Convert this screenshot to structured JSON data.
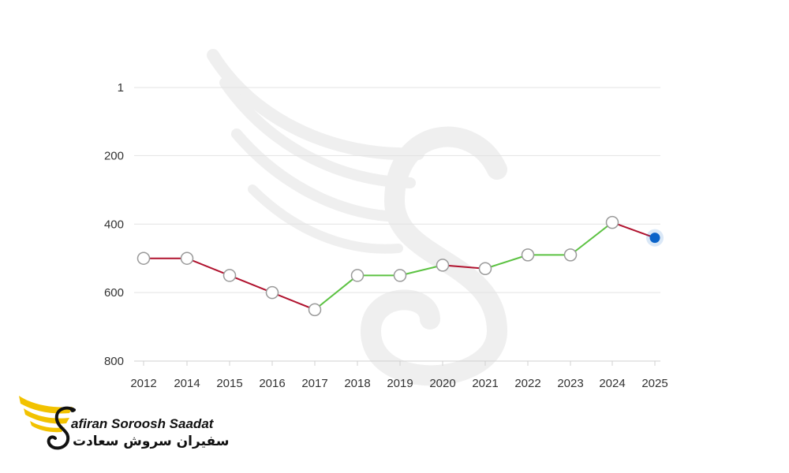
{
  "chart_data": {
    "type": "line",
    "categories": [
      "2012",
      "2014",
      "2015",
      "2016",
      "2017",
      "2018",
      "2019",
      "2020",
      "2021",
      "2022",
      "2023",
      "2024",
      "2025"
    ],
    "values": [
      500,
      500,
      550,
      600,
      650,
      550,
      550,
      520,
      530,
      490,
      490,
      395,
      440
    ],
    "y_ticks": [
      1,
      200,
      400,
      600,
      800
    ],
    "ylim": [
      1,
      800
    ],
    "y_reversed": true,
    "grid": true,
    "title": "",
    "xlabel": "",
    "ylabel": "",
    "colors": {
      "down": "#b0122e",
      "up": "#5cc242",
      "marker_fill": "#ffffff",
      "marker_stroke": "#9a9a9a",
      "latest_point": "#0a63c9"
    }
  },
  "logo": {
    "name_en": "afiran Soroosh Saadat",
    "name_fa": "سفیران سروش سعادت",
    "wing_color": "#f2c200",
    "icon": "swan-wing-logo-icon"
  },
  "watermark": {
    "icon": "swan-wing-watermark-icon"
  }
}
